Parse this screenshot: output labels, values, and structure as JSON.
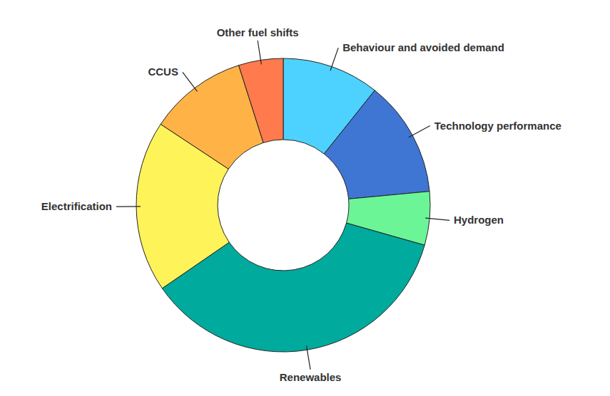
{
  "chart_data": {
    "type": "donut",
    "categories": [
      "Behaviour and avoided demand",
      "Technology performance",
      "Hydrogen",
      "Renewables",
      "Electrification",
      "CCUS",
      "Other fuel shifts"
    ],
    "values": [
      10.7,
      12.8,
      5.9,
      36,
      18.9,
      10.8,
      4.9
    ],
    "colors": [
      "#4dd2ff",
      "#3f76d4",
      "#6cf596",
      "#00aa9c",
      "#fff35a",
      "#ffb347",
      "#ff7a4d"
    ]
  }
}
